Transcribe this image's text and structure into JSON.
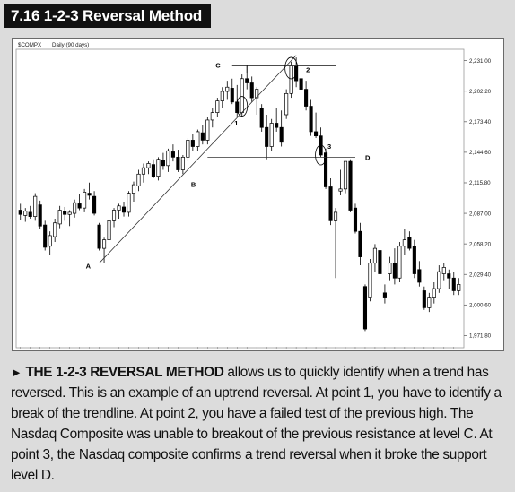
{
  "figure": {
    "number_title": "7.16  1-2-3 Reversal Method"
  },
  "chart_data": {
    "type": "candlestick",
    "header_symbol": "$COMPX",
    "header_period": "Daily (90 days)",
    "y_ticks": [
      "2,231.00",
      "2,202.20",
      "2,173.40",
      "2,144.60",
      "2,115.80",
      "2,087.00",
      "2,058.20",
      "2,029.40",
      "2,000.60",
      "1,971.80"
    ],
    "y_tick_values": [
      2231.0,
      2202.2,
      2173.4,
      2144.6,
      2115.8,
      2087.0,
      2058.2,
      2029.4,
      2000.6,
      1971.8
    ],
    "ylim": [
      1962,
      2240
    ],
    "num_bars": 90,
    "candles": [
      [
        2090,
        2096,
        2081,
        2086
      ],
      [
        2085,
        2092,
        2079,
        2089
      ],
      [
        2088,
        2094,
        2082,
        2084
      ],
      [
        2084,
        2106,
        2080,
        2103
      ],
      [
        2095,
        2099,
        2072,
        2075
      ],
      [
        2076,
        2080,
        2052,
        2055
      ],
      [
        2056,
        2070,
        2048,
        2066
      ],
      [
        2065,
        2082,
        2060,
        2078
      ],
      [
        2077,
        2094,
        2073,
        2090
      ],
      [
        2089,
        2093,
        2080,
        2086
      ],
      [
        2086,
        2090,
        2075,
        2088
      ],
      [
        2087,
        2100,
        2083,
        2097
      ],
      [
        2096,
        2105,
        2090,
        2092
      ],
      [
        2092,
        2110,
        2088,
        2107
      ],
      [
        2106,
        2116,
        2100,
        2104
      ],
      [
        2103,
        2108,
        2085,
        2087
      ],
      [
        2076,
        2078,
        2052,
        2054
      ],
      [
        2054,
        2064,
        2040,
        2062
      ],
      [
        2062,
        2083,
        2058,
        2080
      ],
      [
        2080,
        2092,
        2074,
        2090
      ],
      [
        2090,
        2096,
        2082,
        2094
      ],
      [
        2093,
        2098,
        2084,
        2088
      ],
      [
        2088,
        2108,
        2084,
        2106
      ],
      [
        2106,
        2117,
        2098,
        2114
      ],
      [
        2113,
        2128,
        2108,
        2124
      ],
      [
        2124,
        2134,
        2116,
        2130
      ],
      [
        2130,
        2136,
        2124,
        2134
      ],
      [
        2133,
        2138,
        2120,
        2122
      ],
      [
        2122,
        2140,
        2118,
        2138
      ],
      [
        2137,
        2144,
        2128,
        2132
      ],
      [
        2132,
        2148,
        2126,
        2146
      ],
      [
        2145,
        2152,
        2136,
        2140
      ],
      [
        2140,
        2147,
        2126,
        2128
      ],
      [
        2128,
        2142,
        2124,
        2140
      ],
      [
        2140,
        2158,
        2136,
        2156
      ],
      [
        2156,
        2162,
        2146,
        2150
      ],
      [
        2150,
        2166,
        2146,
        2164
      ],
      [
        2163,
        2170,
        2152,
        2156
      ],
      [
        2156,
        2178,
        2152,
        2175
      ],
      [
        2175,
        2186,
        2168,
        2182
      ],
      [
        2182,
        2196,
        2178,
        2193
      ],
      [
        2193,
        2206,
        2186,
        2202
      ],
      [
        2202,
        2212,
        2194,
        2206
      ],
      [
        2205,
        2214,
        2190,
        2192
      ],
      [
        2192,
        2208,
        2178,
        2182
      ],
      [
        2182,
        2218,
        2178,
        2214
      ],
      [
        2214,
        2226,
        2204,
        2210
      ],
      [
        2210,
        2216,
        2192,
        2196
      ],
      [
        2196,
        2206,
        2180,
        2204
      ],
      [
        2186,
        2190,
        2164,
        2168
      ],
      [
        2168,
        2180,
        2138,
        2150
      ],
      [
        2150,
        2176,
        2146,
        2172
      ],
      [
        2172,
        2186,
        2164,
        2168
      ],
      [
        2168,
        2184,
        2150,
        2154
      ],
      [
        2180,
        2204,
        2176,
        2200
      ],
      [
        2200,
        2230,
        2196,
        2226
      ],
      [
        2226,
        2234,
        2206,
        2212
      ],
      [
        2214,
        2220,
        2198,
        2204
      ],
      [
        2204,
        2212,
        2184,
        2188
      ],
      [
        2188,
        2194,
        2160,
        2164
      ],
      [
        2164,
        2182,
        2158,
        2160
      ],
      [
        2160,
        2168,
        2140,
        2142
      ],
      [
        2144,
        2148,
        2110,
        2112
      ],
      [
        2112,
        2120,
        2076,
        2080
      ],
      [
        2080,
        2092,
        2026,
        2088
      ],
      [
        2108,
        2128,
        2104,
        2110
      ],
      [
        2110,
        2134,
        2106,
        2136
      ],
      [
        2136,
        2138,
        2088,
        2090
      ],
      [
        2092,
        2096,
        2068,
        2070
      ],
      [
        2070,
        2078,
        2038,
        2046
      ],
      [
        2018,
        2020,
        1976,
        1978
      ],
      [
        2008,
        2044,
        2004,
        2040
      ],
      [
        2040,
        2058,
        2032,
        2054
      ],
      [
        2052,
        2058,
        2026,
        2030
      ],
      [
        2012,
        2020,
        2002,
        2008
      ],
      [
        2030,
        2046,
        2024,
        2040
      ],
      [
        2040,
        2054,
        2020,
        2026
      ],
      [
        2026,
        2060,
        2022,
        2056
      ],
      [
        2056,
        2072,
        2048,
        2062
      ],
      [
        2064,
        2070,
        2052,
        2054
      ],
      [
        2056,
        2062,
        2026,
        2030
      ],
      [
        2034,
        2042,
        2018,
        2022
      ],
      [
        2014,
        2018,
        1996,
        1998
      ],
      [
        1998,
        2012,
        1994,
        2008
      ],
      [
        2008,
        2022,
        2002,
        2016
      ],
      [
        2016,
        2038,
        2012,
        2032
      ],
      [
        2030,
        2040,
        2024,
        2036
      ],
      [
        2030,
        2034,
        2016,
        2026
      ],
      [
        2026,
        2032,
        2010,
        2014
      ],
      [
        2014,
        2026,
        2010,
        2020
      ]
    ],
    "annotations": {
      "label_A": "A",
      "label_B": "B",
      "label_C": "C",
      "label_D": "D",
      "label_1": "1",
      "label_2": "2",
      "label_3": "3"
    },
    "level_C": 2226,
    "level_D": 2140
  },
  "caption": {
    "arrow": "►",
    "lead": "THE 1-2-3 REVERSAL METHOD",
    "body": " allows us to quickly identify when a trend has reversed. This is an example of an uptrend reversal. At point 1, you have to identify a break of the trendline. At point 2, you have a failed test of the previous high. The Nasdaq Composite was unable to breakout of the previous resistance at level C. At point 3, the Nasdaq composite confirms a trend reversal when it broke the support level D."
  }
}
